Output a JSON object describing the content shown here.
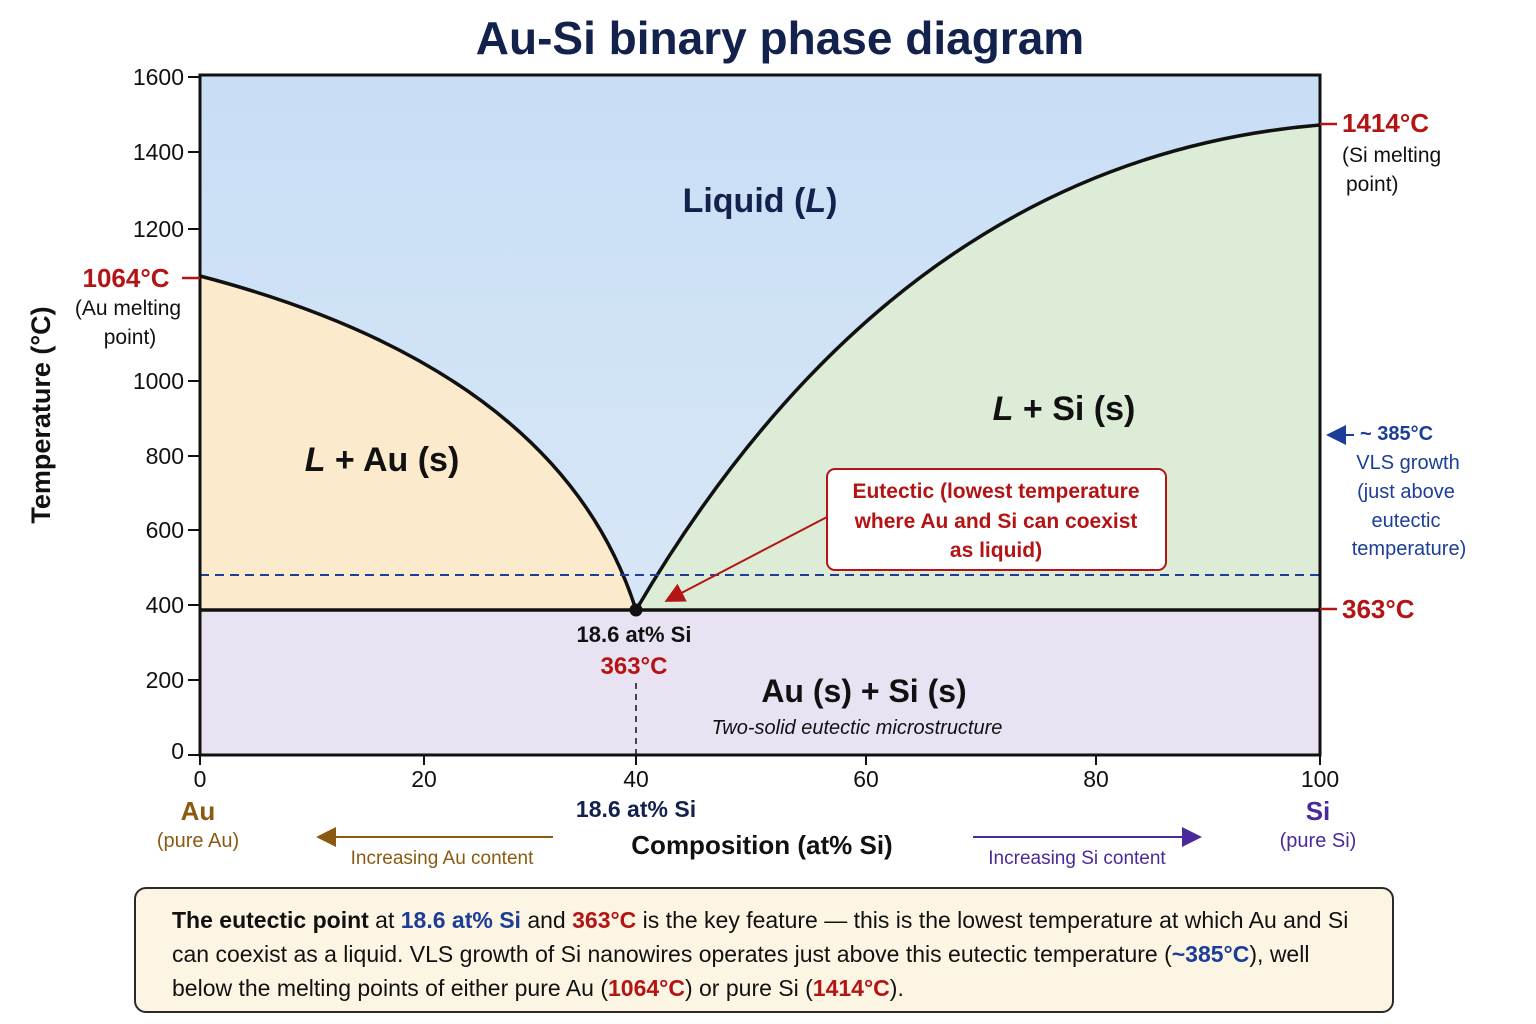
{
  "title": "Au-Si binary phase diagram",
  "colors": {
    "liquid": "#cfe2f5",
    "l_au": "#fbeacb",
    "l_si": "#dcecd6",
    "solid": "#e9e2f2",
    "red": "#b41414",
    "navy": "#1c3e98",
    "gold": "#8a5a12",
    "purple": "#4a2a9a"
  },
  "axes": {
    "y_label": "Temperature (°C)",
    "x_label": "Composition (at% Si)",
    "y_ticks": [
      "0",
      "200",
      "400",
      "600",
      "800",
      "1000",
      "1200",
      "1400",
      "1600"
    ],
    "x_ticks": [
      "0",
      "20",
      "40",
      "60",
      "80",
      "100"
    ]
  },
  "regions": {
    "liquid_main": "Liquid (",
    "liquid_italic": "L",
    "liquid_close": ")",
    "l_au_italic": "L",
    "l_au_rest": " + Au (s)",
    "l_si_italic": "L",
    "l_si_rest": " + Si (s)",
    "solid": "Au (s) + Si (s)",
    "solid_sub": "Two-solid eutectic microstructure"
  },
  "labels": {
    "au_melt_temp": "1064°C",
    "au_melt_line1": "(Au melting",
    "au_melt_line2": "point)",
    "si_melt_temp": "1414°C",
    "si_melt_line1": "(Si melting",
    "si_melt_line2": "point)",
    "vls_temp": "~ 385°C",
    "vls_line1": "VLS growth",
    "vls_line2": "(just above",
    "vls_line3": "eutectic",
    "vls_line4": "temperature)",
    "eutectic_right": "363°C",
    "eutectic_comp": "18.6 at% Si",
    "eutectic_temp": "363°C",
    "eutectic_axis_comp": "18.6 at% Si",
    "callout_line1": "Eutectic (lowest temperature",
    "callout_line2": "where Au and Si can coexist",
    "callout_line3": "as liquid)",
    "au_symbol": "Au",
    "au_pure": "(pure Au)",
    "si_symbol": "Si",
    "si_pure": "(pure Si)",
    "au_arrow": "Increasing Au content",
    "si_arrow": "Increasing Si content"
  },
  "note": {
    "p1": "The eutectic point",
    "p2": " at ",
    "p3": "18.6 at% Si",
    "p4": " and ",
    "p5": "363°C",
    "p6": " is the key feature — this is the lowest temperature at which Au and Si can coexist as a liquid. VLS growth of Si nanowires operates just above this eutectic temperature (",
    "p7": "~385°C",
    "p8": "), well below the melting points of either pure Au (",
    "p9": "1064°C",
    "p10": ") or pure Si (",
    "p11": "1414°C",
    "p12": ")."
  }
}
